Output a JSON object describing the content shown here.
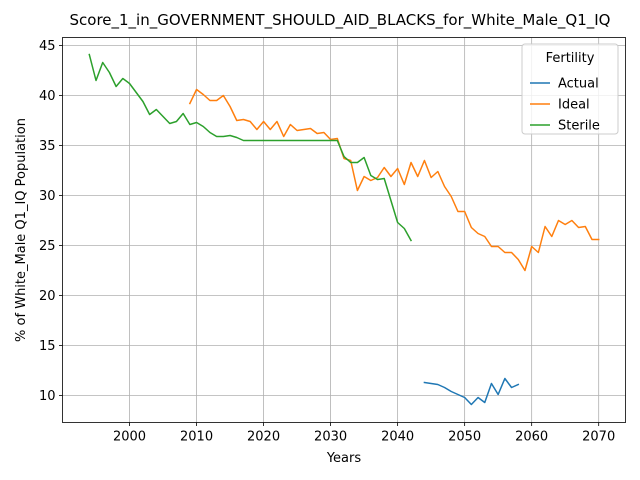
{
  "chart_data": {
    "type": "line",
    "title": "Score_1_in_GOVERNMENT_SHOULD_AID_BLACKS_for_White_Male_Q1_IQ",
    "xlabel": "Years",
    "ylabel": "% of White_Male Q1_IQ Population",
    "xlim": [
      1990,
      2074
    ],
    "ylim": [
      7.3,
      45.8
    ],
    "xticks": [
      2000,
      2010,
      2020,
      2030,
      2040,
      2050,
      2060,
      2070
    ],
    "yticks": [
      10,
      15,
      20,
      25,
      30,
      35,
      40,
      45
    ],
    "grid": true,
    "legend": {
      "title": "Fertility",
      "placement": "top-right"
    },
    "series": [
      {
        "name": "Actual",
        "color": "#1f77b4",
        "x": [
          2044,
          2045,
          2046,
          2047,
          2048,
          2049,
          2050,
          2051,
          2052,
          2053,
          2054,
          2055,
          2056,
          2057,
          2058
        ],
        "y": [
          11.3,
          11.2,
          11.1,
          10.8,
          10.4,
          10.1,
          9.8,
          9.1,
          9.8,
          9.3,
          11.2,
          10.1,
          11.7,
          10.8,
          11.1
        ]
      },
      {
        "name": "Ideal",
        "color": "#ff7f0e",
        "x": [
          2009,
          2010,
          2011,
          2012,
          2013,
          2014,
          2015,
          2016,
          2017,
          2018,
          2019,
          2020,
          2021,
          2022,
          2023,
          2024,
          2025,
          2026,
          2027,
          2028,
          2029,
          2030,
          2031,
          2032,
          2033,
          2034,
          2035,
          2036,
          2037,
          2038,
          2039,
          2040,
          2041,
          2042,
          2043,
          2044,
          2045,
          2046,
          2047,
          2048,
          2049,
          2050,
          2051,
          2052,
          2053,
          2054,
          2055,
          2056,
          2057,
          2058,
          2059,
          2060,
          2061,
          2062,
          2063,
          2064,
          2065,
          2066,
          2067,
          2068,
          2069,
          2070
        ],
        "y": [
          39.2,
          40.6,
          40.1,
          39.5,
          39.5,
          40.0,
          38.9,
          37.5,
          37.6,
          37.4,
          36.6,
          37.4,
          36.6,
          37.4,
          35.9,
          37.1,
          36.5,
          36.6,
          36.7,
          36.2,
          36.3,
          35.6,
          35.7,
          33.7,
          33.5,
          30.5,
          31.9,
          31.5,
          31.8,
          32.8,
          31.9,
          32.7,
          31.1,
          33.3,
          31.9,
          33.5,
          31.8,
          32.4,
          30.9,
          29.9,
          28.4,
          28.4,
          26.8,
          26.2,
          25.9,
          24.9,
          24.9,
          24.3,
          24.3,
          23.6,
          22.5,
          24.9,
          24.3,
          26.9,
          25.9,
          27.5,
          27.1,
          27.5,
          26.8,
          26.9,
          25.6,
          25.6
        ]
      },
      {
        "name": "Sterile",
        "color": "#2ca02c",
        "x": [
          1994,
          1995,
          1996,
          1997,
          1998,
          1999,
          2000,
          2001,
          2002,
          2003,
          2004,
          2005,
          2006,
          2007,
          2008,
          2009,
          2010,
          2011,
          2012,
          2013,
          2014,
          2015,
          2016,
          2017,
          2018,
          2019,
          2020,
          2021,
          2022,
          2023,
          2024,
          2025,
          2026,
          2027,
          2028,
          2029,
          2030,
          2031,
          2032,
          2033,
          2034,
          2035,
          2036,
          2037,
          2038,
          2039,
          2040,
          2041,
          2042
        ],
        "y": [
          44.1,
          41.5,
          43.3,
          42.3,
          40.9,
          41.7,
          41.2,
          40.3,
          39.4,
          38.1,
          38.6,
          37.9,
          37.2,
          37.4,
          38.2,
          37.1,
          37.3,
          36.9,
          36.3,
          35.9,
          35.9,
          36.0,
          35.8,
          35.5,
          35.5,
          35.5,
          35.5,
          35.5,
          35.5,
          35.5,
          35.5,
          35.5,
          35.5,
          35.5,
          35.5,
          35.5,
          35.5,
          35.5,
          33.9,
          33.3,
          33.3,
          33.8,
          32.0,
          31.6,
          31.7,
          29.5,
          27.3,
          26.7,
          25.5
        ]
      }
    ]
  }
}
